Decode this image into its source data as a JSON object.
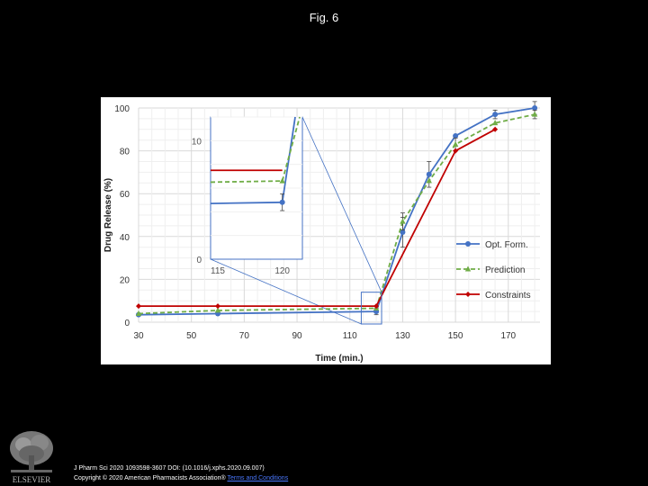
{
  "figure_title": "Fig. 6",
  "chart_data": {
    "type": "line",
    "xlabel": "Time (min.)",
    "ylabel": "Drug Release (%)",
    "xlim": [
      30,
      182
    ],
    "ylim": [
      0,
      100
    ],
    "xticks": [
      "30",
      "50",
      "70",
      "90",
      "110",
      "130",
      "150",
      "170"
    ],
    "yticks": [
      "0",
      "20",
      "40",
      "60",
      "80",
      "100"
    ],
    "grid": true,
    "legend_position": "right",
    "series": [
      {
        "name": "Opt. Form.",
        "color": "#4472c4",
        "dash": "solid",
        "marker": "circle",
        "x": [
          30,
          60,
          120,
          130,
          140,
          150,
          165,
          180
        ],
        "y": [
          3.5,
          4,
          5,
          42,
          69,
          87,
          97,
          100
        ],
        "err": [
          0,
          0,
          1.5,
          7,
          6,
          0,
          2,
          3
        ]
      },
      {
        "name": "Prediction",
        "color": "#70ad47",
        "dash": "dashed",
        "marker": "triangle",
        "x": [
          30,
          60,
          120,
          130,
          140,
          150,
          165,
          180
        ],
        "y": [
          4,
          5.5,
          6.5,
          47,
          66,
          83,
          93,
          97
        ],
        "err": [
          0,
          0,
          0,
          4,
          0,
          3,
          0,
          2
        ]
      },
      {
        "name": "Constraints",
        "color": "#c00000",
        "dash": "solid",
        "marker": "diamond",
        "x": [
          30,
          60,
          120,
          150,
          165
        ],
        "y": [
          7.5,
          7.5,
          7.5,
          80,
          90
        ],
        "err": [
          0,
          0,
          0,
          0,
          0
        ]
      }
    ],
    "inset": {
      "xlim": [
        115,
        121
      ],
      "ylim": [
        0,
        12
      ],
      "xticks": [
        "115",
        "120"
      ],
      "yticks": [
        "0",
        "10"
      ],
      "series": [
        {
          "name": "Opt. Form.",
          "x": [
            115,
            120
          ],
          "y": [
            4.7,
            4.8
          ],
          "err_at_end": 0.7
        },
        {
          "name": "Prediction",
          "x": [
            115,
            120
          ],
          "y": [
            6.5,
            6.6
          ]
        },
        {
          "name": "Constraints",
          "x": [
            115,
            120
          ],
          "y": [
            7.5,
            7.5
          ]
        }
      ]
    }
  },
  "citation": {
    "line1": "J Pharm Sci 2020 1093598-3607 DOI: (10.1016/j.xphs.2020.09.007)",
    "line2_prefix": "Copyright © 2020 American Pharmacists Association® ",
    "line2_link": "Terms and Conditions"
  },
  "publisher_logo": "elsevier-tree-logo",
  "publisher_name": "ELSEVIER"
}
